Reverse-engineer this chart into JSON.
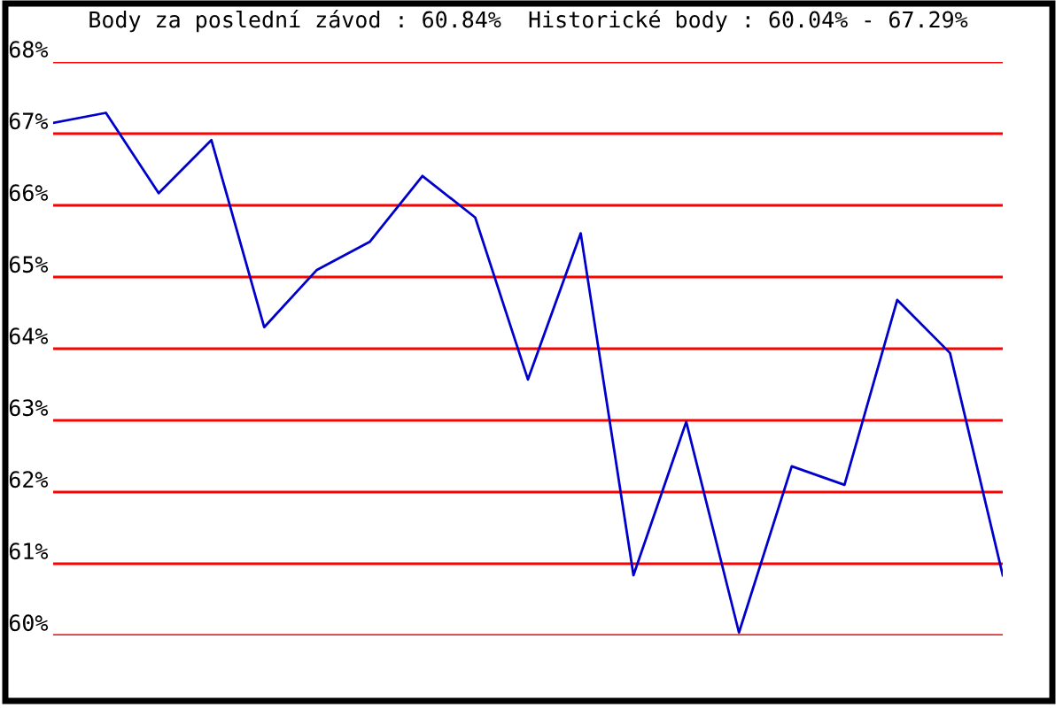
{
  "chart_data": {
    "type": "line",
    "title": "Body za poslední závod : 60.84%  Historické body : 60.04% - 67.29%",
    "categories": [
      null,
      null,
      null,
      null,
      null,
      null,
      null,
      null,
      null,
      null,
      null,
      null,
      null,
      null,
      null,
      null,
      null,
      null,
      null
    ],
    "series": [
      {
        "color": "#0000cc",
        "values": [
          67.15,
          67.29,
          66.17,
          66.91,
          64.3,
          65.1,
          65.49,
          66.41,
          65.83,
          63.57,
          65.61,
          60.84,
          62.98,
          60.04,
          62.36,
          62.1,
          64.68,
          63.94,
          60.84
        ]
      }
    ],
    "ylim": [
      60,
      68
    ],
    "yticks": [
      {
        "value": 60,
        "label": "60%"
      },
      {
        "value": 61,
        "label": "61%"
      },
      {
        "value": 62,
        "label": "62%"
      },
      {
        "value": 63,
        "label": "63%"
      },
      {
        "value": 64,
        "label": "64%"
      },
      {
        "value": 65,
        "label": "65%"
      },
      {
        "value": 66,
        "label": "66%"
      },
      {
        "value": 67,
        "label": "67%"
      },
      {
        "value": 68,
        "label": "68%"
      }
    ],
    "grid": "y",
    "tick_labels": "y",
    "marker": "none",
    "line_style": "solid"
  }
}
